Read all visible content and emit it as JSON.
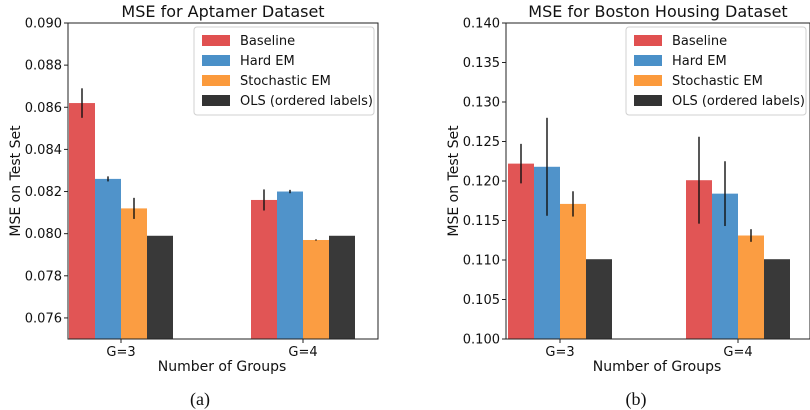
{
  "chart_data": [
    {
      "type": "bar",
      "title": "MSE for Aptamer Dataset",
      "xlabel": "Number of Groups",
      "ylabel": "MSE on Test Set",
      "categories": [
        "G=3",
        "G=4"
      ],
      "ylim": [
        0.075,
        0.09
      ],
      "yticks": [
        "0.076",
        "0.078",
        "0.080",
        "0.082",
        "0.084",
        "0.086",
        "0.088",
        "0.090"
      ],
      "ytick_values": [
        0.076,
        0.078,
        0.08,
        0.082,
        0.084,
        0.086,
        0.088,
        0.09
      ],
      "legend_position": "top-right",
      "caption": "(a)",
      "series": [
        {
          "name": "Baseline",
          "color": "#e05050",
          "values": [
            0.0862,
            0.0816
          ],
          "errors": [
            0.0007,
            0.0005
          ]
        },
        {
          "name": "Hard EM",
          "color": "#4a90c8",
          "values": [
            0.0826,
            0.082
          ],
          "errors": [
            0.00012,
            8e-05
          ]
        },
        {
          "name": "Stochastic EM",
          "color": "#fb9a3c",
          "values": [
            0.0812,
            0.0797
          ],
          "errors": [
            0.0005,
            3e-05
          ]
        },
        {
          "name": "OLS (ordered labels)",
          "color": "#333333",
          "values": [
            0.0799,
            0.0799
          ],
          "errors": [
            0,
            0
          ]
        }
      ]
    },
    {
      "type": "bar",
      "title": "MSE for Boston Housing Dataset",
      "xlabel": "Number of Groups",
      "ylabel": "MSE on Test Set",
      "categories": [
        "G=3",
        "G=4"
      ],
      "ylim": [
        0.1,
        0.14
      ],
      "yticks": [
        "0.100",
        "0.105",
        "0.110",
        "0.115",
        "0.120",
        "0.125",
        "0.130",
        "0.135",
        "0.140"
      ],
      "ytick_values": [
        0.1,
        0.105,
        0.11,
        0.115,
        0.12,
        0.125,
        0.13,
        0.135,
        0.14
      ],
      "legend_position": "top-right",
      "caption": "(b)",
      "series": [
        {
          "name": "Baseline",
          "color": "#e05050",
          "values": [
            0.1222,
            0.1201
          ],
          "errors": [
            0.0025,
            0.0055
          ]
        },
        {
          "name": "Hard EM",
          "color": "#4a90c8",
          "values": [
            0.1218,
            0.1184
          ],
          "errors": [
            0.0062,
            0.0041
          ]
        },
        {
          "name": "Stochastic EM",
          "color": "#fb9a3c",
          "values": [
            0.1171,
            0.1131
          ],
          "errors": [
            0.0016,
            0.0008
          ]
        },
        {
          "name": "OLS (ordered labels)",
          "color": "#333333",
          "values": [
            0.1101,
            0.1101
          ],
          "errors": [
            0,
            0
          ]
        }
      ]
    }
  ]
}
